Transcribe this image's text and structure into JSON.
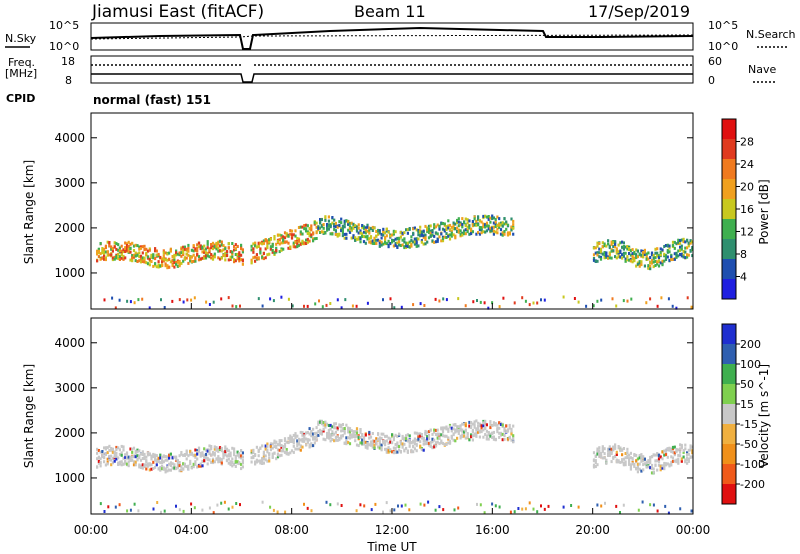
{
  "header": {
    "radar": "Jiamusi East (fitACF)",
    "beam": "Beam 11",
    "date": "17/Sep/2019"
  },
  "noise_panel": {
    "left_label": "N.Sky",
    "right_label": "N.Search",
    "left_ticks": [
      "10^5",
      "10^0"
    ],
    "right_ticks": [
      "10^5",
      "10^0"
    ]
  },
  "freq_panel": {
    "left_label_line1": "Freq.",
    "left_label_line2": "[MHz]",
    "right_label": "Nave",
    "left_ticks": [
      "18",
      "8"
    ],
    "right_ticks": [
      "60",
      "0"
    ]
  },
  "cpid": {
    "label": "CPID",
    "value": "normal (fast) 151"
  },
  "colors": {
    "scale_power": [
      "#1f1fe0",
      "#1f4fb0",
      "#2f8f6f",
      "#3faf4f",
      "#c8c81f",
      "#f0a01f",
      "#f07a1f",
      "#e03a1f",
      "#e01010"
    ],
    "scale_velocity": [
      "#e01010",
      "#f05a1a",
      "#f0901a",
      "#f0b040",
      "#c8c8c8",
      "#7fd04f",
      "#3faf4f",
      "#2f5fb0",
      "#1f2fd0"
    ]
  },
  "chart_data": [
    {
      "type": "heatmap",
      "panel": "power",
      "ylabel": "Slant Range [km]",
      "y_ticks": [
        "1000",
        "2000",
        "3000",
        "4000"
      ],
      "ylim": [
        200,
        4550
      ],
      "x_ticks": [
        "00:00",
        "04:00",
        "08:00",
        "12:00",
        "16:00",
        "20:00",
        "00:00"
      ],
      "xlim_hours": [
        0,
        24
      ],
      "colorbar_label": "Power [dB]",
      "colorbar_ticks": [
        "4",
        "8",
        "12",
        "16",
        "20",
        "24",
        "28"
      ],
      "colorbar_range": [
        0,
        30
      ],
      "bands": [
        {
          "t0": 0.2,
          "t1": 6.0,
          "range": 1450,
          "value": 14
        },
        {
          "t0": 6.3,
          "t1": 9.0,
          "range": 1500,
          "value": 17
        },
        {
          "t0": 9.0,
          "t1": 16.8,
          "range": 2000,
          "value": 8
        },
        {
          "t0": 20.0,
          "t1": 24.0,
          "range": 1500,
          "value": 16
        }
      ]
    },
    {
      "type": "heatmap",
      "panel": "velocity",
      "ylabel": "Slant Range [km]",
      "y_ticks": [
        "1000",
        "2000",
        "3000",
        "4000"
      ],
      "ylim": [
        200,
        4550
      ],
      "x_ticks": [
        "00:00",
        "04:00",
        "08:00",
        "12:00",
        "16:00",
        "20:00",
        "00:00"
      ],
      "xlim_hours": [
        0,
        24
      ],
      "xlabel": "Time UT",
      "colorbar_label": "Velocity [m s^-1]",
      "colorbar_ticks": [
        "200",
        "100",
        "50",
        "15",
        "-15",
        "-50",
        "-100",
        "-200"
      ],
      "colorbar_range": [
        -250,
        250
      ]
    }
  ]
}
